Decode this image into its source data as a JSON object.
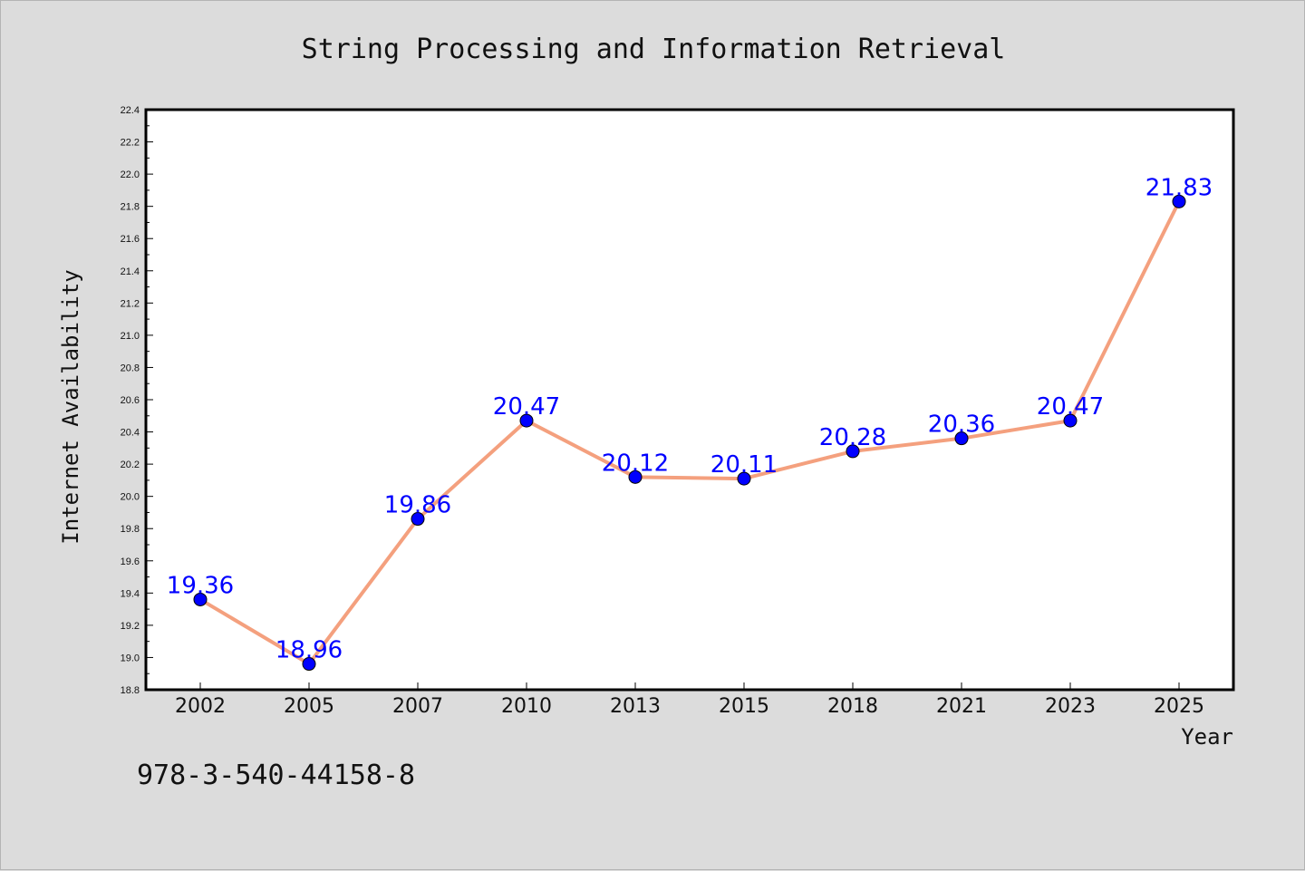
{
  "chart_data": {
    "type": "line",
    "title": "String Processing and Information Retrieval",
    "xlabel": "Year",
    "ylabel": "Internet Availability",
    "categories": [
      "2002",
      "2005",
      "2007",
      "2010",
      "2013",
      "2015",
      "2018",
      "2021",
      "2023",
      "2025"
    ],
    "series": [
      {
        "values": [
          19.36,
          18.96,
          19.86,
          20.47,
          20.12,
          20.11,
          20.28,
          20.36,
          20.47,
          21.83
        ],
        "line_color": "#f4a07e",
        "marker_color": "#0000ff"
      }
    ],
    "data_labels": [
      "19.36",
      "18.96",
      "19.86",
      "20.47",
      "20.12",
      "20.11",
      "20.28",
      "20.36",
      "20.47",
      "21.83"
    ],
    "ylim": [
      18.8,
      22.4
    ],
    "yticks": [
      "18.8",
      "19.0",
      "19.2",
      "19.4",
      "19.6",
      "19.8",
      "20.0",
      "20.2",
      "20.4",
      "20.6",
      "20.8",
      "21.0",
      "21.2",
      "21.4",
      "21.6",
      "21.8",
      "22.0",
      "22.2",
      "22.4"
    ],
    "grid": false,
    "background_color": "#dcdcdc",
    "plot_background_color": "#ffffff"
  },
  "footnote": "978-3-540-44158-8"
}
